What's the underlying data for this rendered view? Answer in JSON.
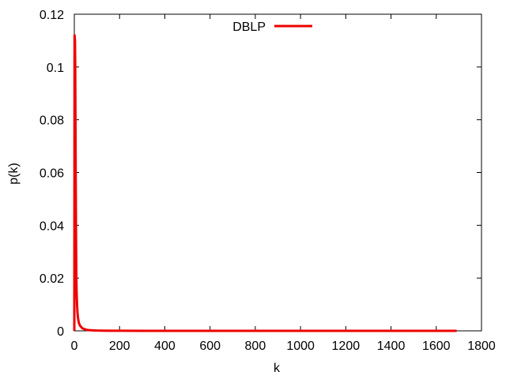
{
  "chart_data": {
    "type": "line",
    "xlabel": "k",
    "ylabel": "p(k)",
    "xlim": [
      0,
      1800
    ],
    "ylim": [
      0,
      0.12
    ],
    "xticks": [
      0,
      200,
      400,
      600,
      800,
      1000,
      1200,
      1400,
      1600,
      1800
    ],
    "yticks": [
      0,
      0.02,
      0.04,
      0.06,
      0.08,
      0.1,
      0.12
    ],
    "grid": false,
    "legend_position": "top-center",
    "series": [
      {
        "name": "DBLP",
        "color": "#ee0000",
        "x": [
          0,
          1,
          2,
          3,
          4,
          5,
          6,
          7,
          8,
          9,
          10,
          12,
          14,
          16,
          18,
          20,
          25,
          30,
          35,
          40,
          50,
          60,
          80,
          100,
          150,
          200,
          300,
          500,
          800,
          1200,
          1690
        ],
        "y": [
          0,
          0.112,
          0.111,
          0.11,
          0.1,
          0.08,
          0.06,
          0.045,
          0.03,
          0.02,
          0.015,
          0.01,
          0.007,
          0.005,
          0.004,
          0.003,
          0.002,
          0.0015,
          0.001,
          0.0008,
          0.0005,
          0.0003,
          0.0002,
          0.0001,
          5e-05,
          3e-05,
          1e-05,
          5e-06,
          2e-06,
          1e-06,
          5e-07
        ]
      }
    ]
  }
}
